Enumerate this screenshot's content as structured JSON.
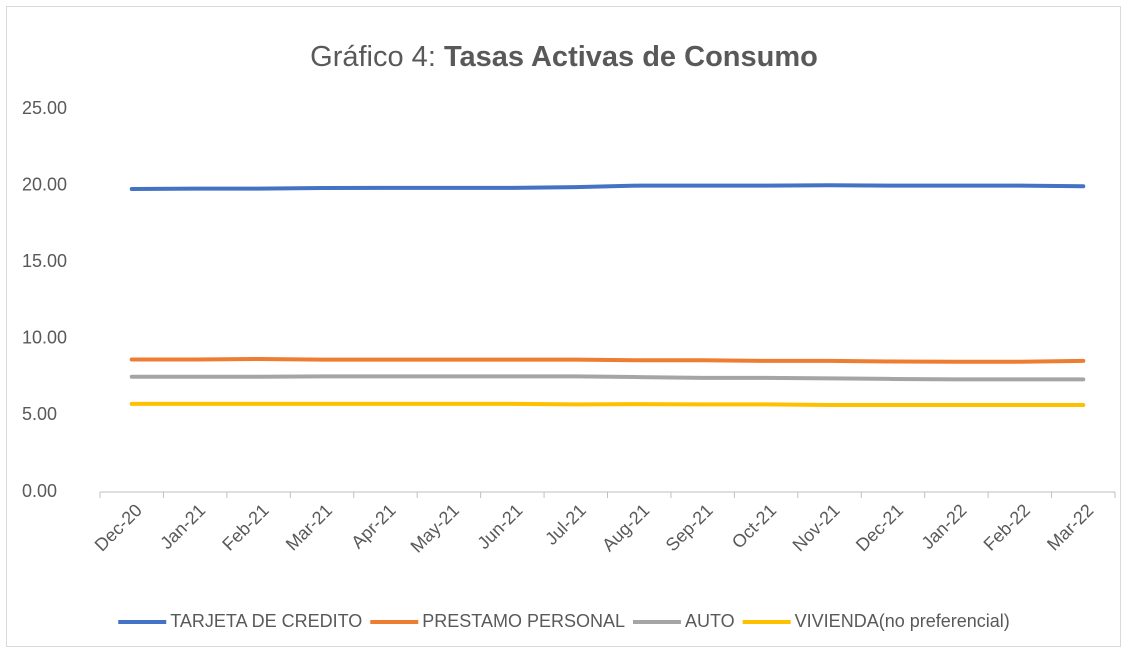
{
  "chart_data": {
    "type": "line",
    "title": "Gráfico 4:",
    "title_emphasis": "Tasas Activas de Consumo",
    "categories": [
      "Dec-20",
      "Jan-21",
      "Feb-21",
      "Mar-21",
      "Apr-21",
      "May-21",
      "Jun-21",
      "Jul-21",
      "Aug-21",
      "Sep-21",
      "Oct-21",
      "Nov-21",
      "Dec-21",
      "Jan-22",
      "Feb-22",
      "Mar-22"
    ],
    "series": [
      {
        "name": "TARJETA DE CREDITO",
        "color": "#4472c4",
        "values": [
          19.78,
          19.8,
          19.8,
          19.84,
          19.85,
          19.85,
          19.85,
          19.9,
          20.0,
          20.0,
          20.0,
          20.02,
          20.0,
          20.0,
          20.0,
          19.96
        ]
      },
      {
        "name": "PRESTAMO PERSONAL",
        "color": "#ed7d31",
        "values": [
          8.65,
          8.65,
          8.68,
          8.64,
          8.64,
          8.64,
          8.64,
          8.64,
          8.6,
          8.6,
          8.56,
          8.56,
          8.52,
          8.5,
          8.5,
          8.56
        ]
      },
      {
        "name": "AUTO",
        "color": "#a5a5a5",
        "values": [
          7.52,
          7.52,
          7.52,
          7.55,
          7.55,
          7.55,
          7.55,
          7.55,
          7.5,
          7.45,
          7.45,
          7.42,
          7.38,
          7.35,
          7.35,
          7.35
        ]
      },
      {
        "name": "VIVIENDA(no preferencial)",
        "color": "#ffc000",
        "values": [
          5.75,
          5.75,
          5.75,
          5.75,
          5.75,
          5.75,
          5.75,
          5.72,
          5.74,
          5.72,
          5.72,
          5.68,
          5.68,
          5.68,
          5.68,
          5.68
        ]
      }
    ],
    "ylim": [
      0,
      25
    ],
    "yticks": [
      {
        "value": 0,
        "label": "0.00"
      },
      {
        "value": 5,
        "label": "5.00"
      },
      {
        "value": 10,
        "label": "10.00"
      },
      {
        "value": 15,
        "label": "15.00"
      },
      {
        "value": 20,
        "label": "20.00"
      },
      {
        "value": 25,
        "label": "25.00"
      }
    ],
    "grid": false,
    "legend": "bottom"
  }
}
